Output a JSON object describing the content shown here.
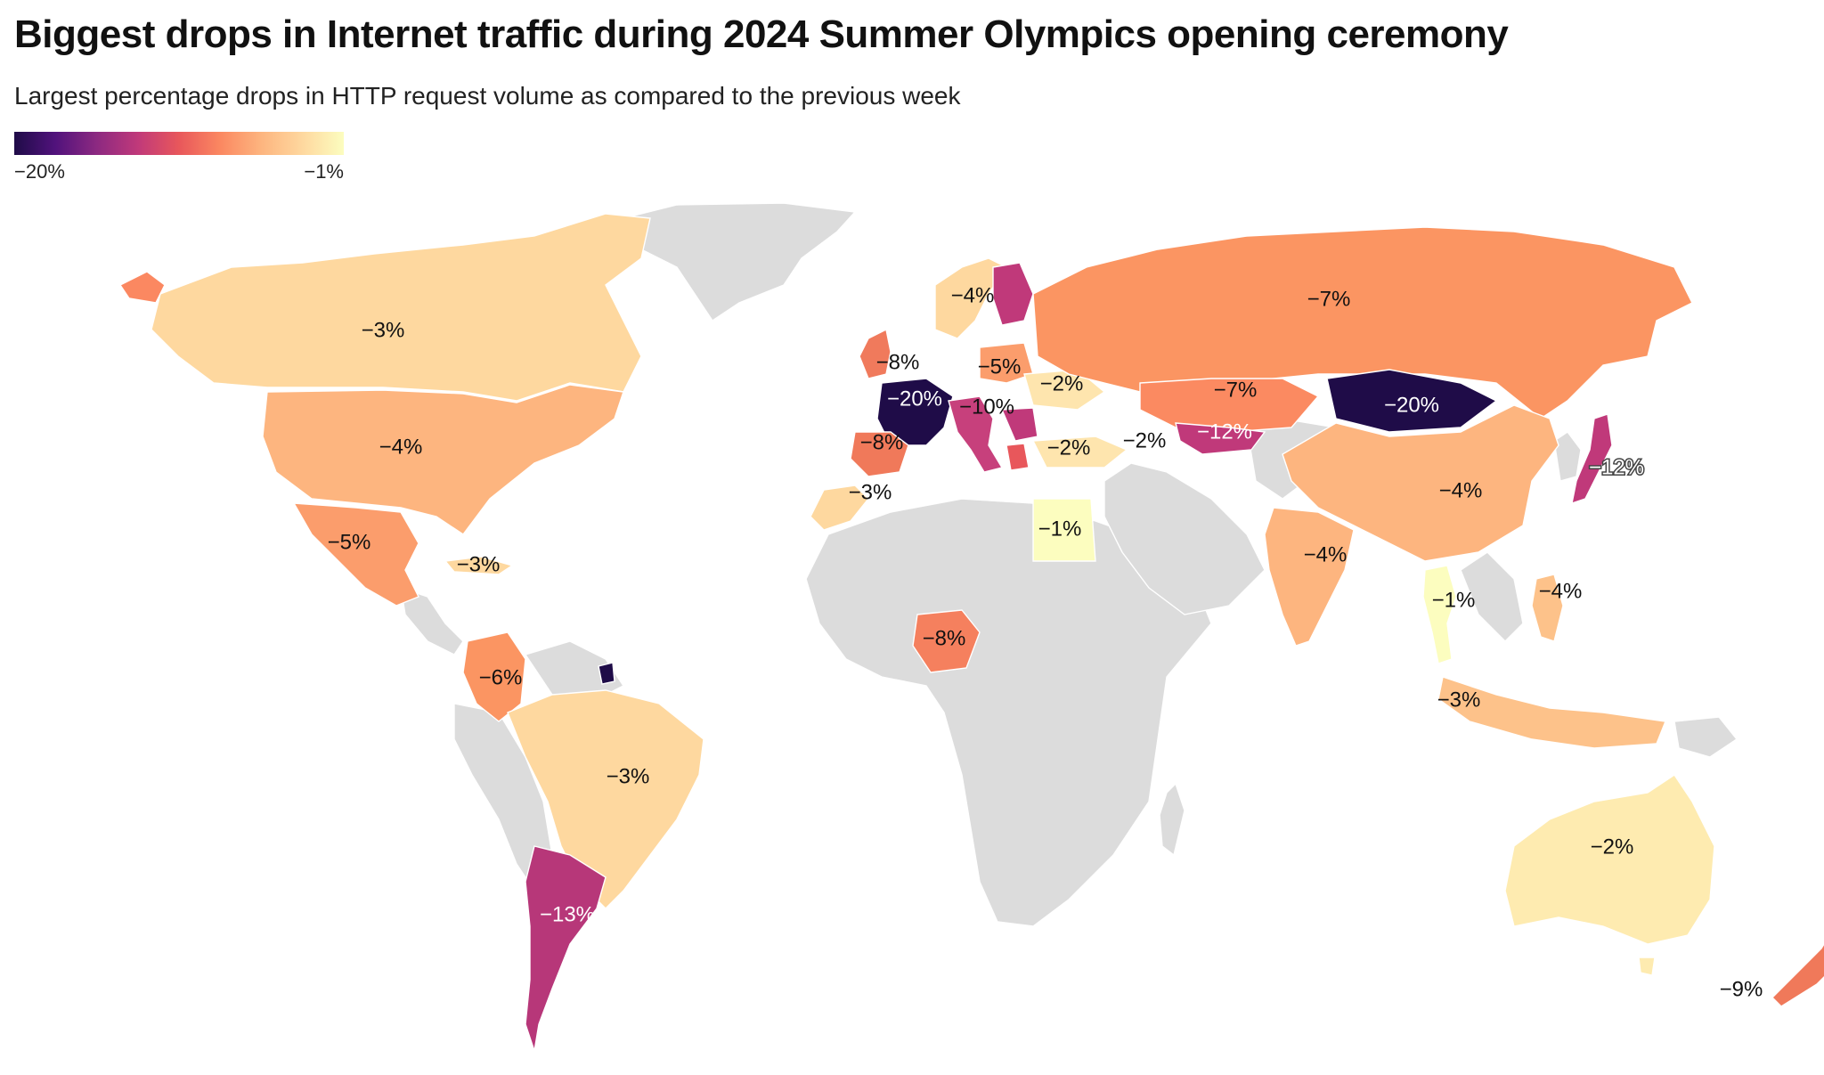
{
  "header": {
    "title": "Biggest drops in Internet traffic during 2024 Summer Olympics opening ceremony",
    "subtitle": "Largest percentage drops in HTTP request volume as compared to the previous week"
  },
  "legend": {
    "min_label": "−20%",
    "max_label": "−1%",
    "min_value": -20,
    "max_value": -1,
    "colors": [
      "#1f0c48",
      "#51127c",
      "#8c2981",
      "#c0397a",
      "#e8575b",
      "#fb8861",
      "#fdb57f",
      "#fed89f",
      "#fcfdbf"
    ]
  },
  "map": {
    "nodata_color": "#dcdcdc",
    "labels": {
      "canada": "−3%",
      "usa": "−4%",
      "mexico": "−5%",
      "cuba": "−3%",
      "colombia": "−6%",
      "brazil": "−3%",
      "argentina": "−13%",
      "france": "−20%",
      "uk": "−8%",
      "spain": "−8%",
      "morocco": "−3%",
      "norway": "−4%",
      "poland": "−5%",
      "ukraine": "−2%",
      "italy": "−10%",
      "turkey": "−2%",
      "georgia": "−2%",
      "egypt": "−1%",
      "nigeria": "−8%",
      "russia": "−7%",
      "kazakhstan": "−7%",
      "uzbekistan": "−12%",
      "mongolia": "−20%",
      "china": "−4%",
      "japan": "−12%",
      "india": "−4%",
      "thailand": "−1%",
      "philippines": "−4%",
      "indonesia": "−3%",
      "australia": "−2%",
      "new_zealand": "−9%"
    }
  }
}
